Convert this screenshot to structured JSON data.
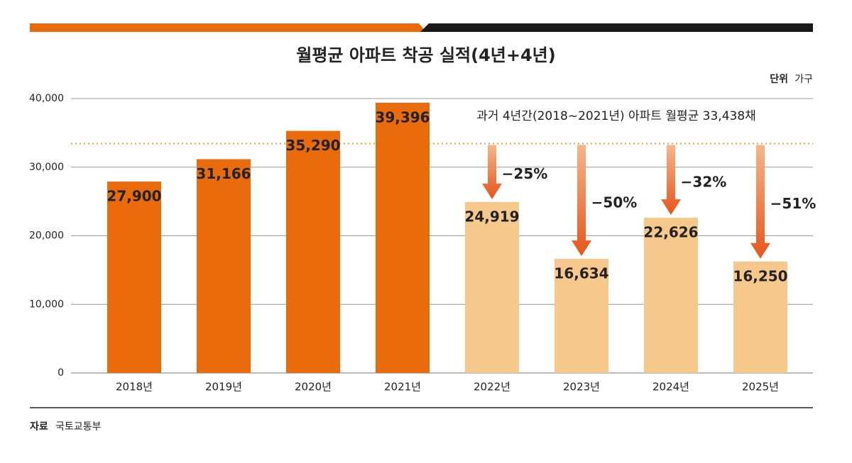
{
  "chart_data": {
    "type": "bar",
    "title": "월평균 아파트 착공 실적(4년+4년)",
    "unit_label": "단위",
    "unit": "가구",
    "categories": [
      "2018년",
      "2019년",
      "2020년",
      "2021년",
      "2022년",
      "2023년",
      "2024년",
      "2025년"
    ],
    "values": [
      27900,
      31166,
      35290,
      39396,
      24919,
      16634,
      22626,
      16250
    ],
    "value_labels": [
      "27,900",
      "31,166",
      "35,290",
      "39,396",
      "24,919",
      "16,634",
      "22,626",
      "16,250"
    ],
    "colors": [
      "#e96b0c",
      "#e96b0c",
      "#e96b0c",
      "#e96b0c",
      "#f7c88c",
      "#f7c88c",
      "#f7c88c",
      "#f7c88c"
    ],
    "label_colors": [
      "#ffffff",
      "#ffffff",
      "#ffffff",
      "#ffffff",
      "#e5531a",
      "#e5531a",
      "#e5531a",
      "#e5531a"
    ],
    "changes": [
      null,
      null,
      null,
      null,
      -25,
      -50,
      -32,
      -51
    ],
    "change_labels": [
      null,
      null,
      null,
      null,
      "−25%",
      "−50%",
      "−32%",
      "−51%"
    ],
    "reference_line": {
      "value": 33438,
      "label": "과거 4년간(2018~2021년) 아파트 월평균 33,438채",
      "color": "#eba23a"
    },
    "ylim": [
      0,
      40000
    ],
    "yticks": [
      0,
      {
        "value": 10000,
        "label": "10,000"
      },
      {
        "value": 20000,
        "label": "20,000"
      },
      {
        "value": 30000,
        "label": "30,000"
      },
      {
        "value": 40000,
        "label": "40,000"
      }
    ],
    "grid": true,
    "source_label": "자료",
    "source": "국토교통부"
  }
}
